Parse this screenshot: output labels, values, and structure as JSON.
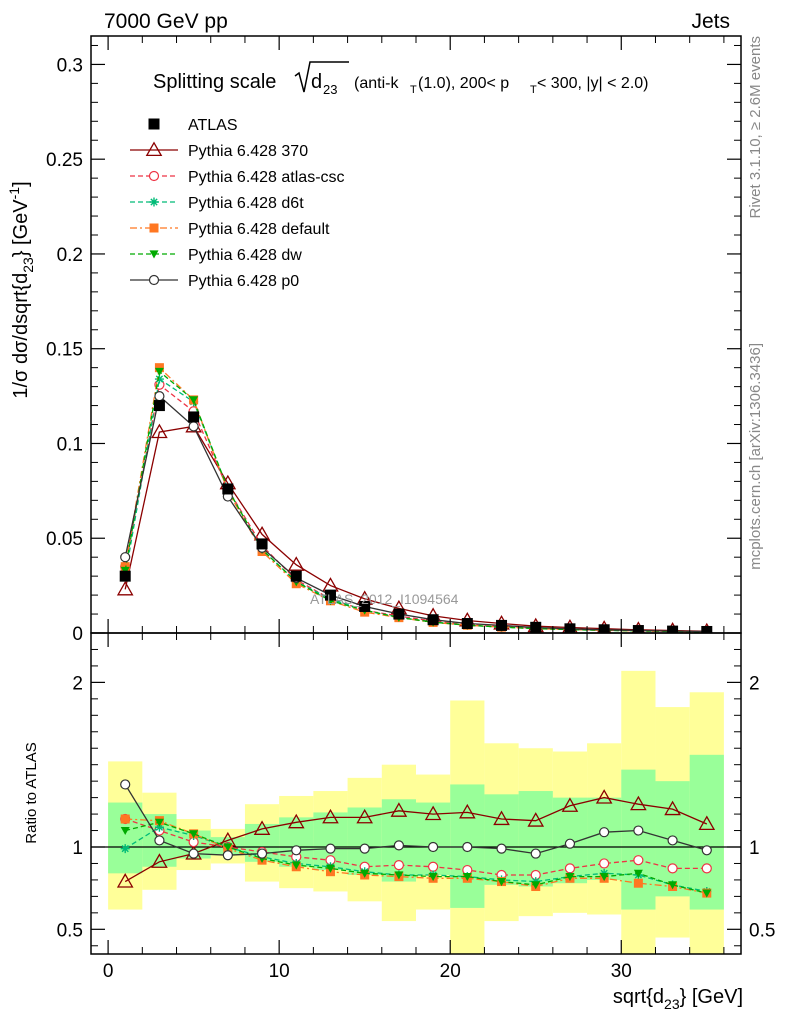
{
  "header": {
    "left": "7000 GeV pp",
    "right": "Jets"
  },
  "side_text": {
    "rivet": "Rivet 3.1.10, ≥ 2.6M events",
    "mcplots": "mcplots.cern.ch [arXiv:1306.3436]"
  },
  "watermark": "ATLAS_2012_I1094564",
  "chart_data": [
    {
      "type": "line",
      "panel": "main",
      "title": "Splitting scale √d23 (anti-kT(1.0), 200< pT < 300, |y| < 2.0)",
      "title_parts": {
        "prefix": "Splitting scale",
        "radicand": "d",
        "radicand_sub": "23",
        "p1": "(anti-k",
        "p1_sub": "T",
        "p2": "(1.0), 200< p",
        "p2_sub": "T",
        "p3": " < 300, |y| < 2.0)"
      },
      "ylabel": "1/σ dσ/dsqrt{d23} [GeV-1]",
      "ylabel_parts": {
        "a": "1/σ dσ/dsqrt{d",
        "a_sub": "23",
        "b": "} [GeV",
        "b_sup": "-1",
        "c": "]"
      },
      "xlim": [
        -1,
        37
      ],
      "ylim": [
        0,
        0.315
      ],
      "yticks": [
        "0",
        "0.05",
        "0.1",
        "0.15",
        "0.2",
        "0.25",
        "0.3"
      ],
      "ytick_values": [
        0,
        0.05,
        0.1,
        0.15,
        0.2,
        0.25,
        0.3
      ],
      "legend_position": "top-left",
      "x": [
        1,
        3,
        5,
        7,
        9,
        11,
        13,
        15,
        17,
        19,
        21,
        23,
        25,
        27,
        29,
        31,
        33,
        35
      ],
      "series": [
        {
          "name": "ATLAS",
          "color": "#000000",
          "marker": "square-filled",
          "line": "none",
          "values": [
            0.03,
            0.12,
            0.114,
            0.076,
            0.047,
            0.03,
            0.02,
            0.014,
            0.01,
            0.007,
            0.005,
            0.004,
            0.003,
            0.0022,
            0.0017,
            0.0013,
            0.001,
            0.0008
          ]
        },
        {
          "name": "Pythia 6.428 370",
          "color": "#8b0000",
          "marker": "triangle-open",
          "line": "solid",
          "values": [
            0.023,
            0.106,
            0.109,
            0.079,
            0.052,
            0.036,
            0.025,
            0.018,
            0.013,
            0.009,
            0.0066,
            0.005,
            0.0036,
            0.0029,
            0.0023,
            0.0017,
            0.0013,
            0.0009
          ]
        },
        {
          "name": "Pythia 6.428 atlas-csc",
          "color": "#ee3344",
          "marker": "circle-open",
          "line": "dashed",
          "values": [
            0.035,
            0.131,
            0.117,
            0.076,
            0.046,
            0.028,
            0.018,
            0.012,
            0.0089,
            0.0063,
            0.0044,
            0.0033,
            0.0025,
            0.0019,
            0.0015,
            0.0012,
            0.0009,
            0.0007
          ]
        },
        {
          "name": "Pythia 6.428 d6t",
          "color": "#00bb77",
          "marker": "star",
          "line": "dashed",
          "values": [
            0.03,
            0.134,
            0.122,
            0.076,
            0.044,
            0.027,
            0.018,
            0.012,
            0.0083,
            0.0058,
            0.0041,
            0.0031,
            0.0024,
            0.0018,
            0.0014,
            0.0011,
            0.0008,
            0.0006
          ]
        },
        {
          "name": "Pythia 6.428 default",
          "color": "#ff7722",
          "marker": "square-filled",
          "line": "dashdot",
          "values": [
            0.035,
            0.14,
            0.123,
            0.075,
            0.043,
            0.026,
            0.017,
            0.011,
            0.0081,
            0.0056,
            0.0041,
            0.0031,
            0.0023,
            0.0018,
            0.0014,
            0.001,
            0.0008,
            0.0006
          ]
        },
        {
          "name": "Pythia 6.428 dw",
          "color": "#00aa00",
          "marker": "triangle-down-filled",
          "line": "dashed",
          "values": [
            0.033,
            0.138,
            0.123,
            0.076,
            0.044,
            0.027,
            0.017,
            0.012,
            0.0082,
            0.0057,
            0.0041,
            0.0031,
            0.0023,
            0.0018,
            0.0014,
            0.0011,
            0.0008,
            0.0006
          ]
        },
        {
          "name": "Pythia 6.428 p0",
          "color": "#333333",
          "marker": "circle-open",
          "line": "solid",
          "values": [
            0.04,
            0.125,
            0.109,
            0.072,
            0.045,
            0.029,
            0.02,
            0.014,
            0.01,
            0.007,
            0.005,
            0.004,
            0.0029,
            0.0022,
            0.0017,
            0.0013,
            0.001,
            0.0008
          ]
        }
      ]
    },
    {
      "type": "line",
      "panel": "ratio",
      "ylabel": "Ratio to ATLAS",
      "xlabel": "sqrt{d23} [GeV]",
      "xlabel_parts": {
        "a": "sqrt{d",
        "a_sub": "23",
        "b": "} [GeV]"
      },
      "xlim": [
        -1,
        37
      ],
      "ylim": [
        0.35,
        2.3
      ],
      "xticks": [
        "0",
        "10",
        "20",
        "30"
      ],
      "xtick_values": [
        0,
        10,
        20,
        30
      ],
      "yticks": [
        "0.5",
        "1",
        "2"
      ],
      "ytick_values": [
        0.5,
        1,
        2
      ],
      "band_edges": [
        0,
        2,
        4,
        6,
        8,
        10,
        12,
        14,
        16,
        18,
        20,
        22,
        24,
        26,
        28,
        30,
        32,
        34,
        36
      ],
      "band_inner": [
        [
          0.84,
          1.27
        ],
        [
          0.88,
          1.2
        ],
        [
          0.93,
          1.1
        ],
        [
          0.95,
          1.06
        ],
        [
          0.91,
          1.14
        ],
        [
          0.88,
          1.18
        ],
        [
          0.86,
          1.21
        ],
        [
          0.83,
          1.24
        ],
        [
          0.79,
          1.29
        ],
        [
          0.83,
          1.27
        ],
        [
          0.63,
          1.38
        ],
        [
          0.77,
          1.32
        ],
        [
          0.76,
          1.34
        ],
        [
          0.78,
          1.3
        ],
        [
          0.8,
          1.3
        ],
        [
          0.62,
          1.47
        ],
        [
          0.7,
          1.4
        ],
        [
          0.62,
          1.56
        ]
      ],
      "band_outer": [
        [
          0.62,
          1.52
        ],
        [
          0.74,
          1.33
        ],
        [
          0.86,
          1.17
        ],
        [
          0.9,
          1.11
        ],
        [
          0.79,
          1.26
        ],
        [
          0.75,
          1.31
        ],
        [
          0.73,
          1.34
        ],
        [
          0.67,
          1.42
        ],
        [
          0.55,
          1.5
        ],
        [
          0.62,
          1.44
        ],
        [
          0.35,
          1.89
        ],
        [
          0.55,
          1.63
        ],
        [
          0.58,
          1.6
        ],
        [
          0.6,
          1.58
        ],
        [
          0.59,
          1.63
        ],
        [
          0.35,
          2.07
        ],
        [
          0.45,
          1.85
        ],
        [
          0.35,
          1.94
        ]
      ],
      "x": [
        1,
        3,
        5,
        7,
        9,
        11,
        13,
        15,
        17,
        19,
        21,
        23,
        25,
        27,
        29,
        31,
        33,
        35
      ],
      "series": [
        {
          "name": "Pythia 6.428 370",
          "color": "#8b0000",
          "marker": "triangle-open",
          "line": "solid",
          "values": [
            0.79,
            0.91,
            0.96,
            1.04,
            1.11,
            1.15,
            1.18,
            1.18,
            1.22,
            1.2,
            1.21,
            1.17,
            1.16,
            1.25,
            1.3,
            1.26,
            1.23,
            1.14
          ]
        },
        {
          "name": "Pythia 6.428 atlas-csc",
          "color": "#ee3344",
          "marker": "circle-open",
          "line": "dashed",
          "values": [
            1.17,
            1.1,
            1.03,
            1.0,
            0.97,
            0.94,
            0.92,
            0.88,
            0.89,
            0.88,
            0.86,
            0.83,
            0.83,
            0.87,
            0.9,
            0.92,
            0.87,
            0.87
          ]
        },
        {
          "name": "Pythia 6.428 d6t",
          "color": "#00bb77",
          "marker": "star",
          "line": "dashed",
          "values": [
            0.99,
            1.12,
            1.07,
            1.0,
            0.94,
            0.9,
            0.88,
            0.85,
            0.83,
            0.83,
            0.82,
            0.8,
            0.79,
            0.82,
            0.84,
            0.83,
            0.77,
            0.73
          ]
        },
        {
          "name": "Pythia 6.428 default",
          "color": "#ff7722",
          "marker": "square-filled",
          "line": "dashdot",
          "values": [
            1.17,
            1.16,
            1.08,
            0.99,
            0.92,
            0.88,
            0.85,
            0.83,
            0.82,
            0.81,
            0.81,
            0.79,
            0.76,
            0.81,
            0.81,
            0.78,
            0.76,
            0.72
          ]
        },
        {
          "name": "Pythia 6.428 dw",
          "color": "#00aa00",
          "marker": "triangle-down-filled",
          "line": "dashed",
          "values": [
            1.1,
            1.15,
            1.08,
            1.0,
            0.93,
            0.89,
            0.87,
            0.84,
            0.83,
            0.82,
            0.82,
            0.79,
            0.77,
            0.82,
            0.82,
            0.84,
            0.77,
            0.72
          ]
        },
        {
          "name": "Pythia 6.428 p0",
          "color": "#333333",
          "marker": "circle-open",
          "line": "solid",
          "values": [
            1.38,
            1.04,
            0.96,
            0.95,
            0.96,
            0.98,
            0.99,
            0.99,
            1.01,
            1.0,
            1.0,
            0.99,
            0.96,
            1.02,
            1.09,
            1.1,
            1.04,
            0.98
          ]
        }
      ]
    }
  ]
}
